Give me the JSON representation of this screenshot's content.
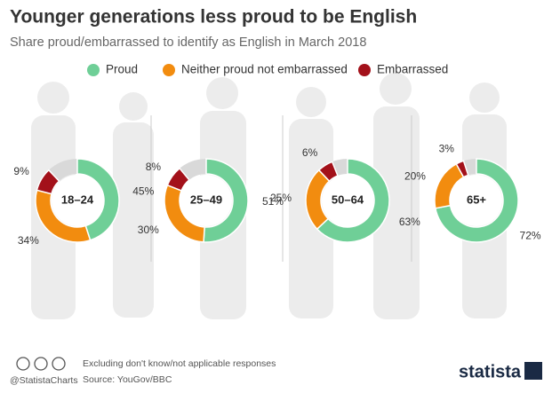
{
  "chart_data": {
    "type": "donut",
    "title": "Younger generations less proud to be English",
    "subtitle": "Share proud/embarrassed to identify as English in March 2018",
    "categories": [
      "18–24",
      "25–49",
      "50–64",
      "65+"
    ],
    "series": [
      {
        "name": "Proud",
        "color": "#6fcf97",
        "values": [
          45,
          51,
          63,
          72
        ],
        "value_labels": [
          "45%",
          "51%",
          "63%",
          "72%"
        ]
      },
      {
        "name": "Neither proud not embarrassed",
        "color": "#f28c0f",
        "values": [
          34,
          30,
          25,
          20
        ],
        "value_labels": [
          "34%",
          "30%",
          "25%",
          "20%"
        ]
      },
      {
        "name": "Embarrassed",
        "color": "#a3111a",
        "values": [
          9,
          8,
          6,
          3
        ],
        "value_labels": [
          "9%",
          "8%",
          "6%",
          "3%"
        ]
      }
    ],
    "remainder_color": "#d9d9d9",
    "note": "Excluding don't know/not applicable responses",
    "source": "Source: YouGov/BBC",
    "credit": "@StatistaCharts",
    "brand": "statista"
  }
}
